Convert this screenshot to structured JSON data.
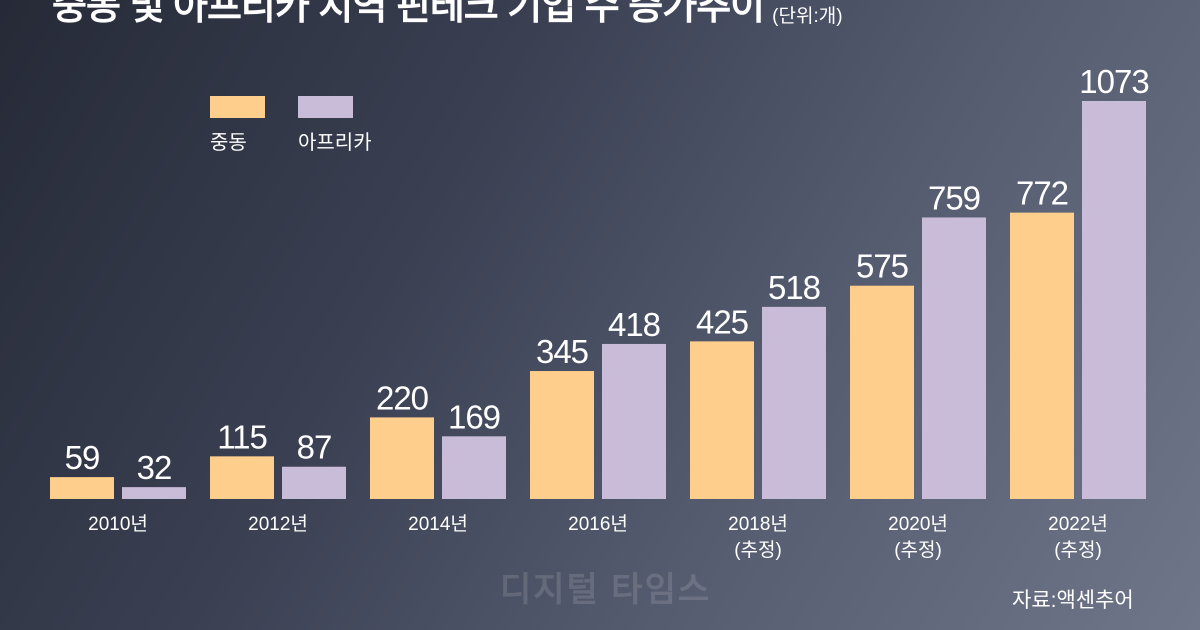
{
  "header": {
    "title": "중동 및 아프리카 지역 핀테크 기업 수 증가추이",
    "unit": "(단위:개)"
  },
  "legend": {
    "middle_east_label": "중동",
    "africa_label": "아프리카"
  },
  "colors": {
    "middle_east": "#fecf8c",
    "africa": "#c8bcd9"
  },
  "chart_data": {
    "type": "bar",
    "title": "중동 및 아프리카 지역 핀테크 기업 수 증가추이",
    "unit": "(단위:개)",
    "categories": [
      [
        "2010년"
      ],
      [
        "2012년"
      ],
      [
        "2014년"
      ],
      [
        "2016년"
      ],
      [
        "2018년",
        "(추정)"
      ],
      [
        "2020년",
        "(추정)"
      ],
      [
        "2022년",
        "(추정)"
      ]
    ],
    "series": [
      {
        "name": "중동",
        "values": [
          59,
          115,
          220,
          345,
          425,
          575,
          772
        ]
      },
      {
        "name": "아프리카",
        "values": [
          32,
          87,
          169,
          418,
          518,
          759,
          1073
        ]
      }
    ],
    "data_labels": true,
    "grid": false,
    "legend_position": "top-left"
  },
  "footer": {
    "source": "자료:액센추어",
    "watermark": "디지털 타임스"
  }
}
